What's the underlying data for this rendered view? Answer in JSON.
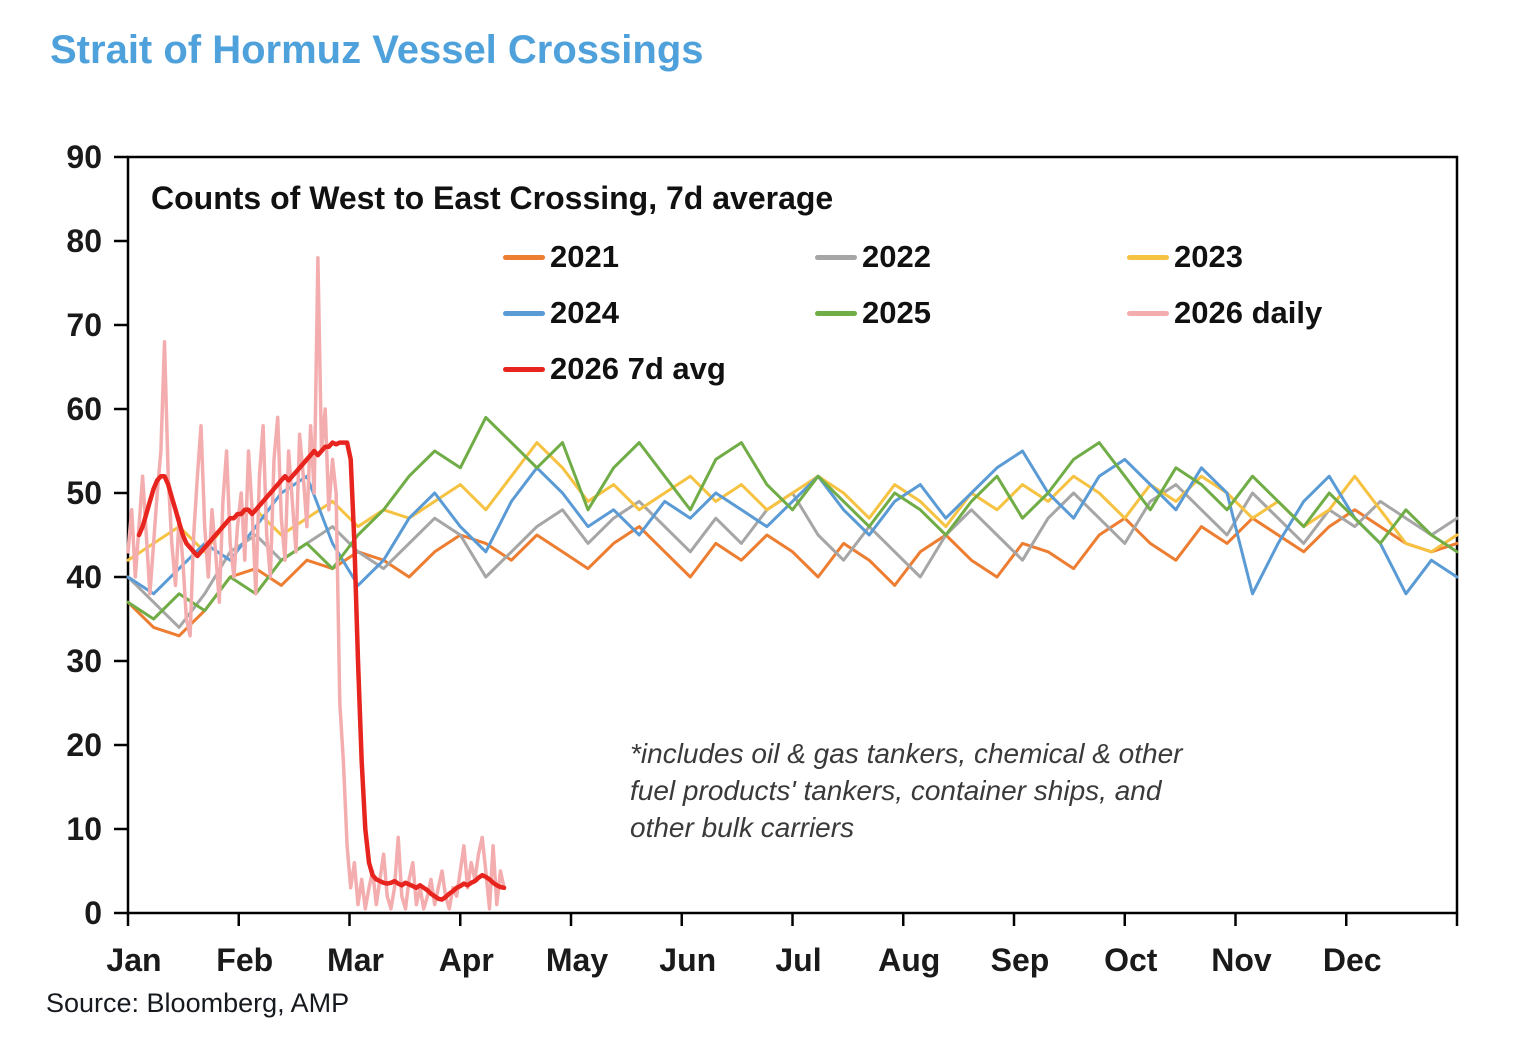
{
  "page": {
    "title": "Strait of Hormuz Vessel Crossings",
    "title_color": "#4ea1db",
    "source": "Source: Bloomberg, AMP"
  },
  "chart_data": {
    "type": "line",
    "title": "Counts of West to East Crossing, 7d average",
    "annotation": "*includes oil & gas tankers, chemical & other\nfuel products' tankers, container ships, and\nother bulk carriers",
    "legend_position": "top-inside",
    "grid": false,
    "x_axis": {
      "tick_labels": [
        "Jan",
        "Feb",
        "Mar",
        "Apr",
        "May",
        "Jun",
        "Jul",
        "Aug",
        "Sep",
        "Oct",
        "Nov",
        "Dec"
      ],
      "domain_days": 365
    },
    "y_axis": {
      "min": 0,
      "max": 90,
      "step": 10,
      "ticks": [
        0,
        10,
        20,
        30,
        40,
        50,
        60,
        70,
        80,
        90
      ]
    },
    "series": [
      {
        "name": "2021",
        "color": "#ED7D31",
        "width": 3,
        "interval_days": 7,
        "start_day": 0,
        "values": [
          37,
          34,
          33,
          36,
          40,
          41,
          39,
          42,
          41,
          43,
          42,
          40,
          43,
          45,
          44,
          42,
          45,
          43,
          41,
          44,
          46,
          43,
          40,
          44,
          42,
          45,
          43,
          40,
          44,
          42,
          39,
          43,
          45,
          42,
          40,
          44,
          43,
          41,
          45,
          47,
          44,
          42,
          46,
          44,
          47,
          45,
          43,
          46,
          48,
          46,
          44,
          43,
          44
        ]
      },
      {
        "name": "2022",
        "color": "#A6A6A6",
        "width": 3,
        "interval_days": 7,
        "start_day": 0,
        "values": [
          40,
          37,
          34,
          38,
          43,
          45,
          42,
          44,
          46,
          43,
          41,
          44,
          47,
          45,
          40,
          43,
          46,
          48,
          44,
          47,
          49,
          46,
          43,
          47,
          44,
          48,
          50,
          45,
          42,
          46,
          43,
          40,
          45,
          48,
          45,
          42,
          47,
          50,
          47,
          44,
          49,
          51,
          48,
          45,
          50,
          47,
          44,
          48,
          46,
          49,
          47,
          45,
          47
        ]
      },
      {
        "name": "2023",
        "color": "#F6C242",
        "width": 3,
        "interval_days": 7,
        "start_day": 0,
        "values": [
          42,
          44,
          46,
          43,
          47,
          48,
          45,
          47,
          49,
          46,
          48,
          47,
          49,
          51,
          48,
          52,
          56,
          53,
          49,
          51,
          48,
          50,
          52,
          49,
          51,
          48,
          50,
          52,
          50,
          47,
          51,
          49,
          46,
          50,
          48,
          51,
          49,
          52,
          50,
          47,
          51,
          49,
          52,
          50,
          47,
          49,
          46,
          48,
          52,
          48,
          44,
          43,
          45
        ]
      },
      {
        "name": "2024",
        "color": "#5B9BD5",
        "width": 3,
        "interval_days": 7,
        "start_day": 0,
        "values": [
          40,
          38,
          41,
          44,
          42,
          46,
          50,
          52,
          44,
          39,
          42,
          47,
          50,
          46,
          43,
          49,
          53,
          50,
          46,
          48,
          45,
          49,
          47,
          50,
          48,
          46,
          49,
          52,
          48,
          45,
          49,
          51,
          47,
          50,
          53,
          55,
          50,
          47,
          52,
          54,
          51,
          48,
          53,
          50,
          38,
          44,
          49,
          52,
          47,
          44,
          38,
          42,
          40
        ]
      },
      {
        "name": "2025",
        "color": "#70AD47",
        "width": 3,
        "interval_days": 7,
        "start_day": 0,
        "values": [
          37,
          35,
          38,
          36,
          40,
          38,
          42,
          44,
          41,
          45,
          48,
          52,
          55,
          53,
          59,
          56,
          53,
          56,
          48,
          53,
          56,
          52,
          48,
          54,
          56,
          51,
          48,
          52,
          49,
          46,
          50,
          48,
          45,
          49,
          52,
          47,
          50,
          54,
          56,
          52,
          48,
          53,
          51,
          48,
          52,
          49,
          46,
          50,
          47,
          44,
          48,
          45,
          43
        ]
      },
      {
        "name": "2026 daily",
        "color": "#F4ADAE",
        "width": 3.5,
        "interval_days": 1,
        "start_day": 0,
        "values": [
          43,
          48,
          40,
          46,
          52,
          45,
          38,
          44,
          50,
          55,
          68,
          52,
          44,
          39,
          47,
          42,
          35,
          33,
          45,
          52,
          58,
          46,
          40,
          48,
          43,
          37,
          49,
          55,
          44,
          40,
          46,
          50,
          42,
          55,
          48,
          38,
          52,
          58,
          45,
          40,
          54,
          59,
          47,
          42,
          55,
          49,
          43,
          57,
          52,
          46,
          58,
          50,
          78,
          55,
          60,
          48,
          54,
          50,
          25,
          18,
          8,
          3,
          6,
          1,
          4,
          0.5,
          3,
          5,
          1,
          4,
          7,
          2,
          0.5,
          3,
          9,
          2,
          0.5,
          4,
          6,
          1,
          3,
          0.5,
          2,
          4,
          1,
          3,
          5,
          2,
          0.5,
          3,
          2,
          5,
          8,
          3,
          6,
          4,
          7,
          9,
          5,
          0.5,
          8,
          1,
          5,
          3
        ]
      },
      {
        "name": "2026 7d avg",
        "color": "#E8241E",
        "width": 4.5,
        "interval_days": 1,
        "start_day": 3,
        "values": [
          45,
          46,
          47.5,
          49,
          50.5,
          51.5,
          52,
          52,
          51,
          49.5,
          48,
          46.5,
          45,
          44,
          43.5,
          43,
          42.5,
          43,
          43.5,
          44,
          44.5,
          45,
          45.5,
          46,
          46.5,
          47,
          47,
          47.5,
          47.5,
          48,
          48,
          47.5,
          48,
          48.5,
          49,
          49.5,
          50,
          50.5,
          51,
          51.5,
          52,
          51.5,
          52,
          52.5,
          53,
          53.5,
          54,
          54.5,
          55,
          54.5,
          55,
          55.5,
          55.5,
          56,
          55.8,
          56,
          56,
          56,
          54,
          44,
          30,
          18,
          10,
          6,
          4.5,
          4,
          3.8,
          3.6,
          3.5,
          3.6,
          3.8,
          3.5,
          3.3,
          3.6,
          3.4,
          3.2,
          3,
          3.3,
          3,
          2.7,
          2.3,
          2,
          1.7,
          1.6,
          1.9,
          2.3,
          2.6,
          3,
          3.2,
          3.5,
          3.3,
          3.6,
          3.8,
          4.2,
          4.5,
          4.3,
          4,
          3.6,
          3.3,
          3.1,
          3
        ]
      }
    ]
  }
}
